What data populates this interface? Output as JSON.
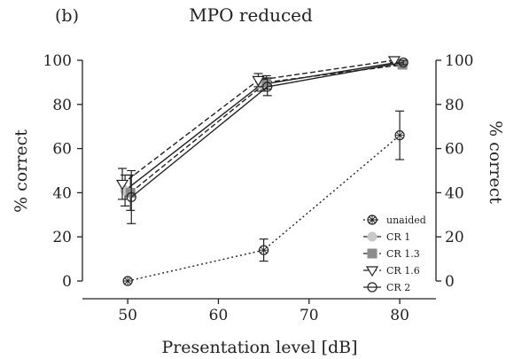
{
  "chart_data": {
    "type": "line",
    "panel_label": "(b)",
    "title": "MPO reduced",
    "xlabel": "Presentation level [dB]",
    "ylabel_left": "% correct",
    "ylabel_right": "% correct",
    "x": [
      50,
      65,
      80
    ],
    "xlim": [
      45,
      84
    ],
    "ylim": [
      0,
      100
    ],
    "xticks": [
      50,
      60,
      70,
      80
    ],
    "yticks": [
      0,
      20,
      40,
      60,
      80,
      100
    ],
    "grid": false,
    "legend_position": "bottom-right",
    "series": [
      {
        "name": "unaided",
        "values": [
          0,
          14,
          66
        ],
        "errors": [
          0,
          5,
          11
        ],
        "x_offset": 0,
        "marker": "crossed-circle",
        "line": "dotted",
        "color": "#222222"
      },
      {
        "name": "CR 1",
        "values": [
          41,
          89,
          99
        ],
        "errors": [
          7,
          3,
          1
        ],
        "x_offset": -0.3,
        "marker": "circle-filled-grey",
        "line": "solid",
        "color": "#222222"
      },
      {
        "name": "CR 1.3",
        "values": [
          40,
          90,
          98
        ],
        "errors": [
          8,
          3,
          1
        ],
        "x_offset": 0.3,
        "marker": "square-grey",
        "line": "dashed",
        "color": "#222222"
      },
      {
        "name": "CR 1.6",
        "values": [
          44,
          91,
          100
        ],
        "errors": [
          7,
          3,
          1
        ],
        "x_offset": -0.6,
        "marker": "triangle-down-open",
        "line": "dashed",
        "color": "#222222"
      },
      {
        "name": "CR 2",
        "values": [
          38,
          88,
          99
        ],
        "errors": [
          12,
          4,
          1
        ],
        "x_offset": 0.4,
        "marker": "circle-open",
        "line": "solid",
        "color": "#222222"
      }
    ]
  }
}
